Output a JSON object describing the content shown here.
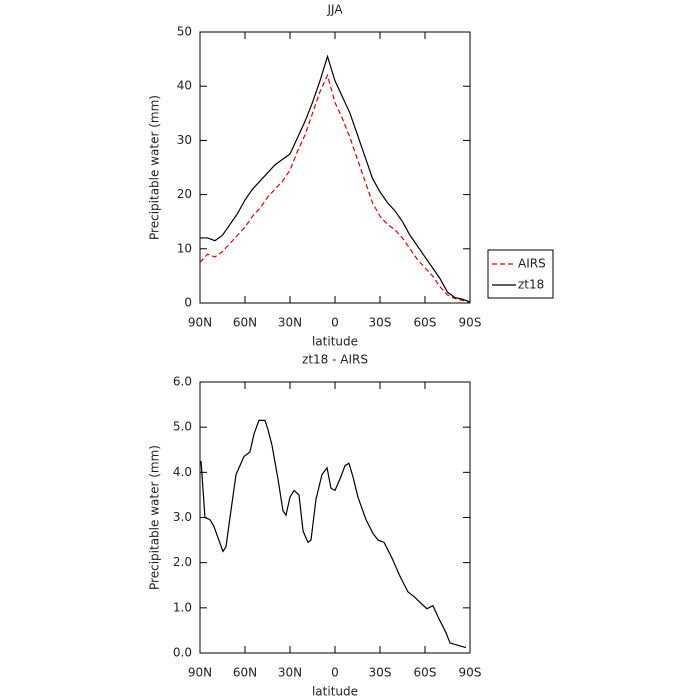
{
  "chart_data": [
    {
      "type": "line",
      "title": "JJA",
      "x_label": "latitude",
      "y_label": "Precipitable water (mm)",
      "x": [
        90,
        85,
        80,
        75,
        70,
        65,
        60,
        55,
        50,
        45,
        40,
        35,
        30,
        25,
        20,
        15,
        10,
        5,
        0,
        -5,
        -10,
        -15,
        -20,
        -25,
        -30,
        -35,
        -40,
        -45,
        -50,
        -55,
        -60,
        -65,
        -70,
        -75,
        -80,
        -85,
        -90
      ],
      "series": [
        {
          "name": "AIRS",
          "color": "#e00000",
          "linestyle": "dashed",
          "values": [
            7.5,
            9,
            8.5,
            9.5,
            11,
            12.5,
            14,
            16,
            17.5,
            19.5,
            21,
            22.5,
            24.5,
            28,
            31,
            35,
            39,
            42,
            37,
            34,
            30.5,
            26.5,
            22.5,
            18.5,
            16,
            14.5,
            13.5,
            12,
            10,
            8,
            6.5,
            5,
            3,
            1.5,
            0.8,
            0.5,
            0.1
          ]
        },
        {
          "name": "zt18",
          "color": "#000000",
          "linestyle": "solid",
          "values": [
            12,
            12,
            11.5,
            12.5,
            14.5,
            16.5,
            19,
            21,
            22.5,
            24,
            25.5,
            26.5,
            27.5,
            30.5,
            33.5,
            37,
            41,
            45.5,
            41,
            38,
            35,
            31,
            27,
            23,
            20.5,
            18.5,
            17,
            15,
            12.5,
            10.5,
            8.5,
            6.5,
            4.5,
            2,
            1,
            0.7,
            0.2
          ]
        }
      ],
      "xlim": [
        90,
        -90
      ],
      "xticks": [
        {
          "value": 90,
          "label": "90N"
        },
        {
          "value": 60,
          "label": "60N"
        },
        {
          "value": 30,
          "label": "30N"
        },
        0,
        {
          "value": -30,
          "label": "30S"
        },
        {
          "value": -60,
          "label": "60S"
        },
        {
          "value": -90,
          "label": "90S"
        }
      ],
      "ylim": [
        0,
        50
      ],
      "yticks": [
        0,
        10,
        20,
        30,
        40,
        50
      ],
      "legend": "right"
    },
    {
      "type": "line",
      "title": "zt18 - AIRS",
      "x_label": "latitude",
      "y_label": "Precipitable water (mm)",
      "x": [
        89.3,
        86.7,
        83.3,
        80.7,
        78,
        74.7,
        72.7,
        70,
        66,
        60.7,
        56.7,
        54,
        50.7,
        46.7,
        44.7,
        42,
        38,
        34.7,
        32.7,
        30,
        27.3,
        24,
        21.3,
        18,
        16,
        12.7,
        8.7,
        5.3,
        2.7,
        0,
        -3.3,
        -6.7,
        -9.3,
        -12,
        -15.3,
        -20.7,
        -25.3,
        -28.7,
        -32.7,
        -38,
        -43.3,
        -48.7,
        -52.7,
        -57.3,
        -61.3,
        -65.3,
        -68.7,
        -74,
        -76.7,
        -82,
        -87.3
      ],
      "series": [
        {
          "name": "zt18 - AIRS",
          "color": "#000000",
          "linestyle": "solid",
          "values": [
            4.25,
            3.0,
            2.95,
            2.8,
            2.55,
            2.25,
            2.35,
            3.0,
            3.95,
            4.35,
            4.45,
            4.85,
            5.15,
            5.15,
            4.95,
            4.6,
            3.85,
            3.15,
            3.05,
            3.45,
            3.6,
            3.5,
            2.7,
            2.45,
            2.5,
            3.4,
            3.95,
            4.1,
            3.65,
            3.6,
            3.85,
            4.15,
            4.2,
            3.9,
            3.45,
            2.95,
            2.65,
            2.5,
            2.45,
            2.1,
            1.7,
            1.35,
            1.25,
            1.1,
            0.98,
            1.05,
            0.8,
            0.45,
            0.22,
            0.17,
            0.12
          ]
        }
      ],
      "xlim": [
        90,
        -90
      ],
      "xticks": [
        {
          "value": 90,
          "label": "90N"
        },
        {
          "value": 60,
          "label": "60N"
        },
        {
          "value": 30,
          "label": "30N"
        },
        0,
        {
          "value": -30,
          "label": "30S"
        },
        {
          "value": -60,
          "label": "60S"
        },
        {
          "value": -90,
          "label": "90S"
        }
      ],
      "ylim": [
        0,
        6
      ],
      "yticks": [
        {
          "value": 0,
          "label": "0.0"
        },
        {
          "value": 1,
          "label": "1.0"
        },
        {
          "value": 2,
          "label": "2.0"
        },
        {
          "value": 3,
          "label": "3.0"
        },
        {
          "value": 4,
          "label": "4.0"
        },
        {
          "value": 5,
          "label": "5.0"
        },
        {
          "value": 6,
          "label": "6.0"
        }
      ]
    }
  ]
}
